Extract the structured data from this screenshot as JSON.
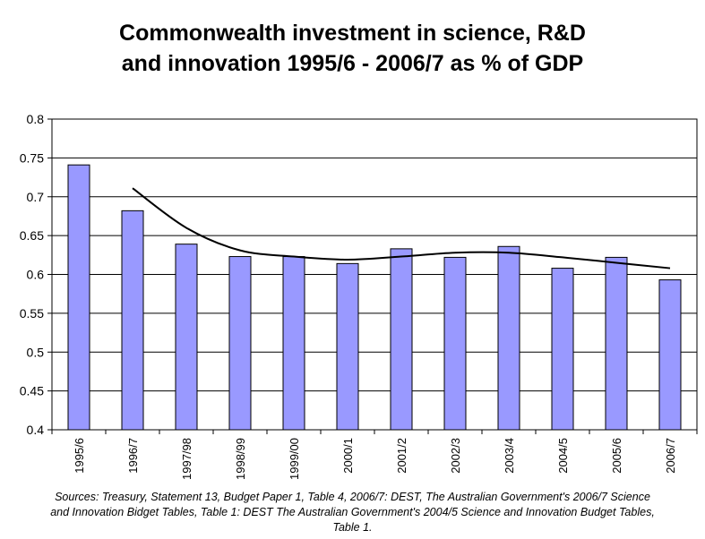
{
  "chart_data": {
    "type": "bar",
    "title_lines": [
      "Commonwealth investment in science, R&D",
      "and innovation 1995/6 - 2006/7 as % of GDP"
    ],
    "categories": [
      "1995/6",
      "1996/7",
      "1997/98",
      "1998/99",
      "1999/00",
      "2000/1",
      "2001/2",
      "2002/3",
      "2003/4",
      "2004/5",
      "2005/6",
      "2006/7"
    ],
    "series": [
      {
        "type": "bar",
        "values": [
          0.741,
          0.682,
          0.639,
          0.623,
          0.623,
          0.614,
          0.633,
          0.622,
          0.636,
          0.608,
          0.622,
          0.593
        ]
      },
      {
        "type": "line",
        "values": [
          null,
          0.711,
          0.66,
          0.631,
          0.623,
          0.619,
          0.623,
          0.628,
          0.628,
          0.622,
          0.615,
          0.608
        ]
      }
    ],
    "ylim": [
      0.4,
      0.8
    ],
    "yticks": [
      "0.4",
      "0.45",
      "0.5",
      "0.55",
      "0.6",
      "0.65",
      "0.7",
      "0.75",
      "0.8"
    ],
    "grid": true,
    "legend": "none",
    "colors": {
      "bar_fill": "#9999ff",
      "bar_stroke": "#000000",
      "line": "#000000",
      "grid": "#000000"
    }
  },
  "source_lines": [
    "Sources: Treasury, Statement 13, Budget Paper 1, Table 4, 2006/7: DEST, The Australian Government's 2006/7 Science",
    "and Innovation Bidget Tables, Table 1: DEST The Australian Government's 2004/5 Science and Innovation Budget Tables,",
    "Table 1."
  ]
}
